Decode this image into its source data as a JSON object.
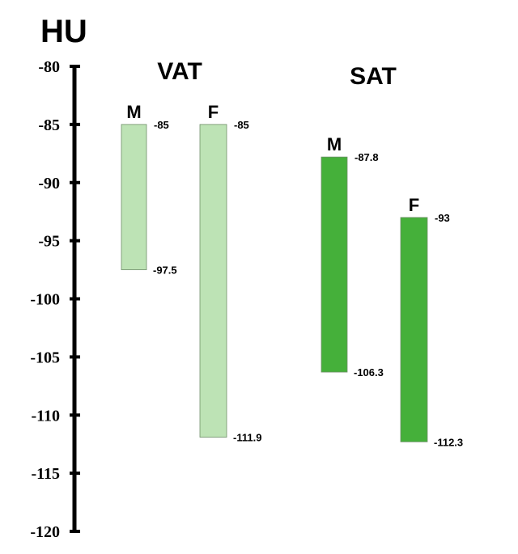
{
  "chart_data": {
    "type": "bar",
    "unit_label": "HU",
    "ylim": [
      -80,
      -120
    ],
    "yticks": [
      -80,
      -85,
      -90,
      -95,
      -100,
      -105,
      -110,
      -115,
      -120
    ],
    "grid": false,
    "groups": [
      {
        "name": "VAT",
        "bars": [
          {
            "category": "M",
            "top": -85,
            "bottom": -97.5,
            "top_label": "-85",
            "bottom_label": "-97.5",
            "color": "#bde3b5"
          },
          {
            "category": "F",
            "top": -85,
            "bottom": -111.9,
            "top_label": "-85",
            "bottom_label": "-111.9",
            "color": "#bde3b5"
          }
        ]
      },
      {
        "name": "SAT",
        "bars": [
          {
            "category": "M",
            "top": -87.8,
            "bottom": -106.3,
            "top_label": "-87.8",
            "bottom_label": "-106.3",
            "color": "#45b03a"
          },
          {
            "category": "F",
            "top": -93,
            "bottom": -112.3,
            "top_label": "-93",
            "bottom_label": "-112.3",
            "color": "#45b03a"
          }
        ]
      }
    ]
  }
}
